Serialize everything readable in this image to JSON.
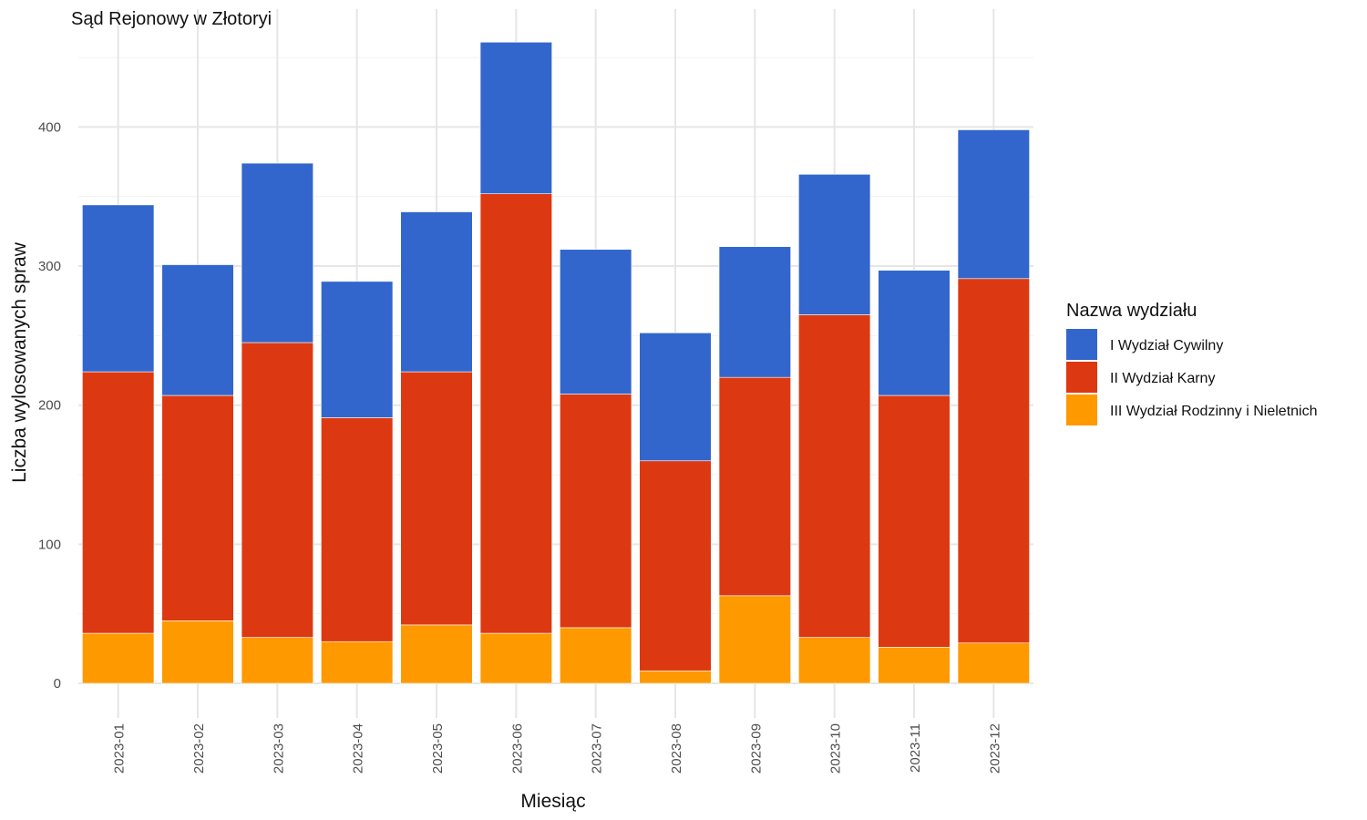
{
  "chart_data": {
    "type": "bar",
    "stacked": true,
    "title": "Sąd Rejonowy w Złotoryi",
    "xlabel": "Miesiąc",
    "ylabel": "Liczba wylosowanych spraw",
    "ylim": [
      0,
      470
    ],
    "yticks": [
      0,
      100,
      200,
      300,
      400
    ],
    "grid": true,
    "legend_position": "right",
    "legend_title": "Nazwa wydziału",
    "categories": [
      "2023-01",
      "2023-02",
      "2023-03",
      "2023-04",
      "2023-05",
      "2023-06",
      "2023-07",
      "2023-08",
      "2023-09",
      "2023-10",
      "2023-11",
      "2023-12"
    ],
    "series": [
      {
        "name": "III Wydział Rodzinny i Nieletnich",
        "color": "#FF9900",
        "values": [
          36,
          45,
          33,
          30,
          42,
          36,
          40,
          9,
          63,
          33,
          26,
          29
        ]
      },
      {
        "name": "II Wydział Karny",
        "color": "#DC3912",
        "values": [
          188,
          162,
          212,
          161,
          182,
          316,
          168,
          151,
          157,
          232,
          181,
          262
        ]
      },
      {
        "name": "I Wydział Cywilny",
        "color": "#3366CC",
        "values": [
          120,
          94,
          129,
          98,
          115,
          109,
          104,
          92,
          94,
          101,
          90,
          107
        ]
      }
    ],
    "legend_order": [
      "I Wydział Cywilny",
      "II Wydział Karny",
      "III Wydział Rodzinny i Nieletnich"
    ]
  }
}
